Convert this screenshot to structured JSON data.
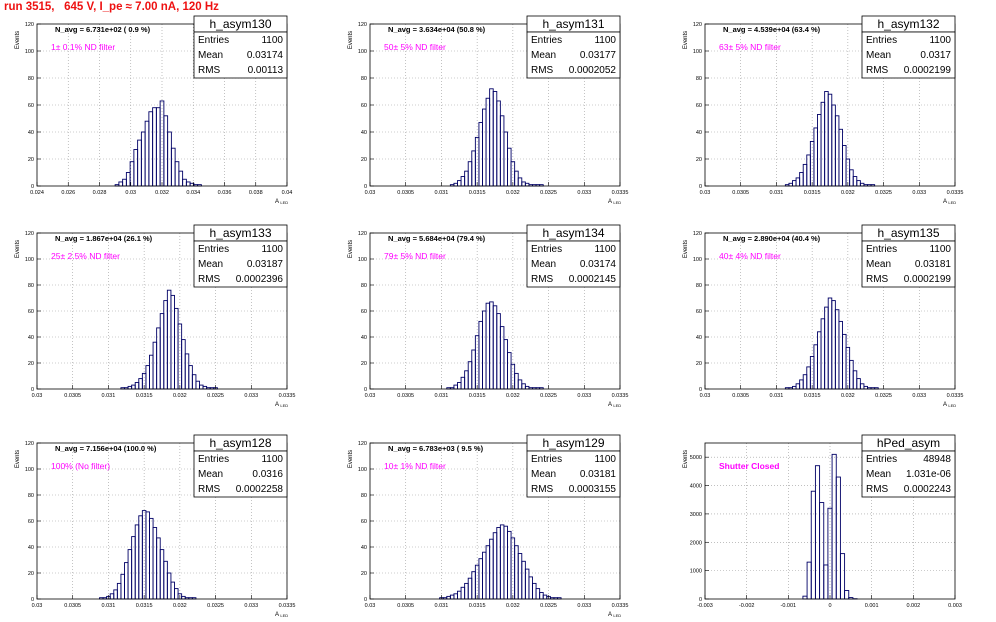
{
  "page": {
    "title": "run 3515,   645 V, I_pe ≈ 7.00 nA, 120 Hz",
    "title_color": "#ee1111",
    "hist_color": "#000066",
    "label_color": "#ff00ff"
  },
  "chart_data": [
    {
      "type": "bar",
      "name": "h_asym130",
      "navg": "N_avg = 6.731e+02 ( 0.9 %)",
      "filter": "1± 0.1% ND filter",
      "stats": {
        "Entries": "1100",
        "Mean": "0.03174",
        "RMS": "0.00113"
      },
      "ylabel": "Events",
      "xlabel": "A_LED",
      "ylim": [
        0,
        120
      ],
      "xlim": [
        0.024,
        0.04
      ],
      "yticks": [
        0,
        20,
        40,
        60,
        80,
        100,
        120
      ],
      "xticks": [
        "0.024",
        "0.026",
        "0.028",
        "0.03",
        "0.032",
        "0.034",
        "0.036",
        "0.038",
        "0.04"
      ],
      "x": [
        0.02912,
        0.02936,
        0.0296,
        0.02984,
        0.03008,
        0.03032,
        0.03056,
        0.0308,
        0.03104,
        0.03128,
        0.03152,
        0.03176,
        0.032,
        0.03224,
        0.03248,
        0.03272,
        0.03296,
        0.0332,
        0.03344,
        0.03368,
        0.03392,
        0.03416,
        0.0344
      ],
      "values": [
        1,
        3,
        5,
        10,
        18,
        27,
        34,
        40,
        48,
        55,
        58,
        58,
        63,
        52,
        40,
        28,
        18,
        11,
        5,
        3,
        2,
        1,
        1
      ]
    },
    {
      "type": "bar",
      "name": "h_asym131",
      "navg": "N_avg = 3.634e+04 (50.8 %)",
      "filter": "50± 5% ND filter",
      "stats": {
        "Entries": "1100",
        "Mean": "0.03177",
        "RMS": "0.0002052"
      },
      "ylabel": "Events",
      "xlabel": "A_LED",
      "ylim": [
        0,
        120
      ],
      "xlim": [
        0.03,
        0.0335
      ],
      "yticks": [
        0,
        20,
        40,
        60,
        80,
        100,
        120
      ],
      "xticks": [
        "0.03",
        "0.0305",
        "0.031",
        "0.0315",
        "0.032",
        "0.0325",
        "0.033",
        "0.0335"
      ],
      "x": [
        0.03115,
        0.0312,
        0.03125,
        0.0313,
        0.03135,
        0.0314,
        0.03145,
        0.0315,
        0.03155,
        0.0316,
        0.03165,
        0.0317,
        0.03175,
        0.0318,
        0.03185,
        0.0319,
        0.03195,
        0.032,
        0.03205,
        0.0321,
        0.03215,
        0.0322,
        0.03225,
        0.0323,
        0.03235,
        0.0324
      ],
      "values": [
        1,
        2,
        4,
        7,
        11,
        18,
        26,
        36,
        47,
        57,
        65,
        72,
        70,
        63,
        52,
        40,
        28,
        18,
        11,
        6,
        3,
        2,
        1,
        1,
        1,
        1
      ]
    },
    {
      "type": "bar",
      "name": "h_asym132",
      "navg": "N_avg = 4.539e+04 (63.4 %)",
      "filter": "63± 5% ND filter",
      "stats": {
        "Entries": "1100",
        "Mean": "0.0317",
        "RMS": "0.0002199"
      },
      "ylabel": "Events",
      "xlabel": "A_LED",
      "ylim": [
        0,
        120
      ],
      "xlim": [
        0.03,
        0.0335
      ],
      "yticks": [
        0,
        20,
        40,
        60,
        80,
        100,
        120
      ],
      "xticks": [
        "0.03",
        "0.0305",
        "0.031",
        "0.0315",
        "0.032",
        "0.0325",
        "0.033",
        "0.0335"
      ],
      "x": [
        0.03115,
        0.0312,
        0.03125,
        0.0313,
        0.03135,
        0.0314,
        0.03145,
        0.0315,
        0.03155,
        0.0316,
        0.03165,
        0.0317,
        0.03175,
        0.0318,
        0.03185,
        0.0319,
        0.03195,
        0.032,
        0.03205,
        0.0321,
        0.03215,
        0.0322,
        0.03225,
        0.0323,
        0.03235
      ],
      "values": [
        1,
        2,
        4,
        6,
        10,
        16,
        23,
        33,
        43,
        53,
        62,
        70,
        68,
        60,
        52,
        42,
        30,
        20,
        12,
        7,
        4,
        2,
        1,
        1,
        1
      ]
    },
    {
      "type": "bar",
      "name": "h_asym133",
      "navg": "N_avg = 1.867e+04 (26.1 %)",
      "filter": "25± 2.5% ND filter",
      "stats": {
        "Entries": "1100",
        "Mean": "0.03187",
        "RMS": "0.0002396"
      },
      "ylabel": "Events",
      "xlabel": "A_LED",
      "ylim": [
        0,
        120
      ],
      "xlim": [
        0.03,
        0.0335
      ],
      "yticks": [
        0,
        20,
        40,
        60,
        80,
        100,
        120
      ],
      "xticks": [
        "0.03",
        "0.0305",
        "0.031",
        "0.0315",
        "0.032",
        "0.0325",
        "0.033",
        "0.0335"
      ],
      "x": [
        0.0312,
        0.03125,
        0.0313,
        0.03135,
        0.0314,
        0.03145,
        0.0315,
        0.03155,
        0.0316,
        0.03165,
        0.0317,
        0.03175,
        0.0318,
        0.03185,
        0.0319,
        0.03195,
        0.032,
        0.03205,
        0.0321,
        0.03215,
        0.0322,
        0.03225,
        0.0323,
        0.03235,
        0.0324,
        0.03245,
        0.0325
      ],
      "values": [
        1,
        1,
        2,
        3,
        5,
        8,
        12,
        18,
        26,
        36,
        47,
        58,
        68,
        76,
        72,
        62,
        50,
        38,
        27,
        18,
        11,
        6,
        3,
        2,
        1,
        1,
        1
      ]
    },
    {
      "type": "bar",
      "name": "h_asym134",
      "navg": "N_avg = 5.684e+04 (79.4 %)",
      "filter": "79± 5% ND filter",
      "stats": {
        "Entries": "1100",
        "Mean": "0.03174",
        "RMS": "0.0002145"
      },
      "ylabel": "Events",
      "xlabel": "A_LED",
      "ylim": [
        0,
        120
      ],
      "xlim": [
        0.03,
        0.0335
      ],
      "yticks": [
        0,
        20,
        40,
        60,
        80,
        100,
        120
      ],
      "xticks": [
        "0.03",
        "0.0305",
        "0.031",
        "0.0315",
        "0.032",
        "0.0325",
        "0.033",
        "0.0335"
      ],
      "x": [
        0.0311,
        0.03115,
        0.0312,
        0.03125,
        0.0313,
        0.03135,
        0.0314,
        0.03145,
        0.0315,
        0.03155,
        0.0316,
        0.03165,
        0.0317,
        0.03175,
        0.0318,
        0.03185,
        0.0319,
        0.03195,
        0.032,
        0.03205,
        0.0321,
        0.03215,
        0.0322,
        0.03225,
        0.0323,
        0.03235,
        0.0324
      ],
      "values": [
        1,
        1,
        3,
        5,
        9,
        14,
        21,
        30,
        41,
        52,
        60,
        66,
        67,
        64,
        58,
        48,
        38,
        28,
        19,
        12,
        7,
        4,
        2,
        1,
        1,
        1,
        1
      ]
    },
    {
      "type": "bar",
      "name": "h_asym135",
      "navg": "N_avg = 2.890e+04 (40.4 %)",
      "filter": "40± 4% ND filter",
      "stats": {
        "Entries": "1100",
        "Mean": "0.03181",
        "RMS": "0.0002199"
      },
      "ylabel": "Events",
      "xlabel": "A_LED",
      "ylim": [
        0,
        120
      ],
      "xlim": [
        0.03,
        0.0335
      ],
      "yticks": [
        0,
        20,
        40,
        60,
        80,
        100,
        120
      ],
      "xticks": [
        "0.03",
        "0.0305",
        "0.031",
        "0.0315",
        "0.032",
        "0.0325",
        "0.033",
        "0.0335"
      ],
      "x": [
        0.03115,
        0.0312,
        0.03125,
        0.0313,
        0.03135,
        0.0314,
        0.03145,
        0.0315,
        0.03155,
        0.0316,
        0.03165,
        0.0317,
        0.03175,
        0.0318,
        0.03185,
        0.0319,
        0.03195,
        0.032,
        0.03205,
        0.0321,
        0.03215,
        0.0322,
        0.03225,
        0.0323,
        0.03235,
        0.0324
      ],
      "values": [
        1,
        1,
        2,
        4,
        7,
        11,
        17,
        25,
        34,
        44,
        54,
        63,
        70,
        68,
        61,
        52,
        42,
        32,
        22,
        14,
        8,
        4,
        2,
        1,
        1,
        1
      ]
    },
    {
      "type": "bar",
      "name": "h_asym128",
      "navg": "N_avg = 7.156e+04 (100.0 %)",
      "filter": "100% (No filter)",
      "stats": {
        "Entries": "1100",
        "Mean": "0.0316",
        "RMS": "0.0002258"
      },
      "ylabel": "Events",
      "xlabel": "A_LED",
      "ylim": [
        0,
        120
      ],
      "xlim": [
        0.03,
        0.0335
      ],
      "yticks": [
        0,
        20,
        40,
        60,
        80,
        100,
        120
      ],
      "xticks": [
        "0.03",
        "0.0305",
        "0.031",
        "0.0315",
        "0.032",
        "0.0325",
        "0.033",
        "0.0335"
      ],
      "x": [
        0.0309,
        0.03095,
        0.031,
        0.03105,
        0.0311,
        0.03115,
        0.0312,
        0.03125,
        0.0313,
        0.03135,
        0.0314,
        0.03145,
        0.0315,
        0.03155,
        0.0316,
        0.03165,
        0.0317,
        0.03175,
        0.0318,
        0.03185,
        0.0319,
        0.03195,
        0.032,
        0.03205,
        0.0321,
        0.03215,
        0.0322
      ],
      "values": [
        1,
        1,
        2,
        4,
        7,
        12,
        19,
        28,
        38,
        48,
        57,
        64,
        68,
        67,
        62,
        55,
        47,
        38,
        29,
        20,
        13,
        8,
        4,
        2,
        1,
        1,
        1
      ]
    },
    {
      "type": "bar",
      "name": "h_asym129",
      "navg": "N_avg = 6.783e+03 ( 9.5 %)",
      "filter": "10± 1% ND filter",
      "stats": {
        "Entries": "1100",
        "Mean": "0.03181",
        "RMS": "0.0003155"
      },
      "ylabel": "Events",
      "xlabel": "A_LED",
      "ylim": [
        0,
        120
      ],
      "xlim": [
        0.03,
        0.0335
      ],
      "yticks": [
        0,
        20,
        40,
        60,
        80,
        100,
        120
      ],
      "xticks": [
        "0.03",
        "0.0305",
        "0.031",
        "0.0315",
        "0.032",
        "0.0325",
        "0.033",
        "0.0335"
      ],
      "x": [
        0.031,
        0.03105,
        0.0311,
        0.03115,
        0.0312,
        0.03125,
        0.0313,
        0.03135,
        0.0314,
        0.03145,
        0.0315,
        0.03155,
        0.0316,
        0.03165,
        0.0317,
        0.03175,
        0.0318,
        0.03185,
        0.0319,
        0.03195,
        0.032,
        0.03205,
        0.0321,
        0.03215,
        0.0322,
        0.03225,
        0.0323,
        0.03235,
        0.0324,
        0.03245,
        0.0325,
        0.03255,
        0.0326,
        0.03265
      ],
      "values": [
        1,
        1,
        2,
        3,
        4,
        6,
        9,
        12,
        16,
        21,
        26,
        31,
        36,
        41,
        46,
        51,
        55,
        57,
        56,
        52,
        47,
        41,
        35,
        29,
        23,
        17,
        12,
        8,
        5,
        3,
        2,
        1,
        1,
        1
      ]
    },
    {
      "type": "bar",
      "name": "hPed_asym",
      "navg": "",
      "filter": "Shutter Closed",
      "stats": {
        "Entries": "48948",
        "Mean": "1.031e-06",
        "RMS": "0.0002243"
      },
      "ylabel": "Events",
      "xlabel": "",
      "ylim": [
        0,
        5500
      ],
      "xlim": [
        -0.003,
        0.003
      ],
      "yticks": [
        0,
        1000,
        2000,
        3000,
        4000,
        5000
      ],
      "xticks": [
        "-0.003",
        "-0.002",
        "-0.001",
        "0",
        "0.001",
        "0.002",
        "0.003"
      ],
      "x": [
        -0.0006,
        -0.0005,
        -0.0004,
        -0.0003,
        -0.0002,
        -0.0001,
        0.0,
        0.0001,
        0.0002,
        0.0003,
        0.0004,
        0.0005,
        0.0006
      ],
      "values": [
        100,
        1300,
        3800,
        4700,
        3400,
        1200,
        3200,
        5100,
        4300,
        1600,
        300,
        50,
        10
      ]
    }
  ]
}
